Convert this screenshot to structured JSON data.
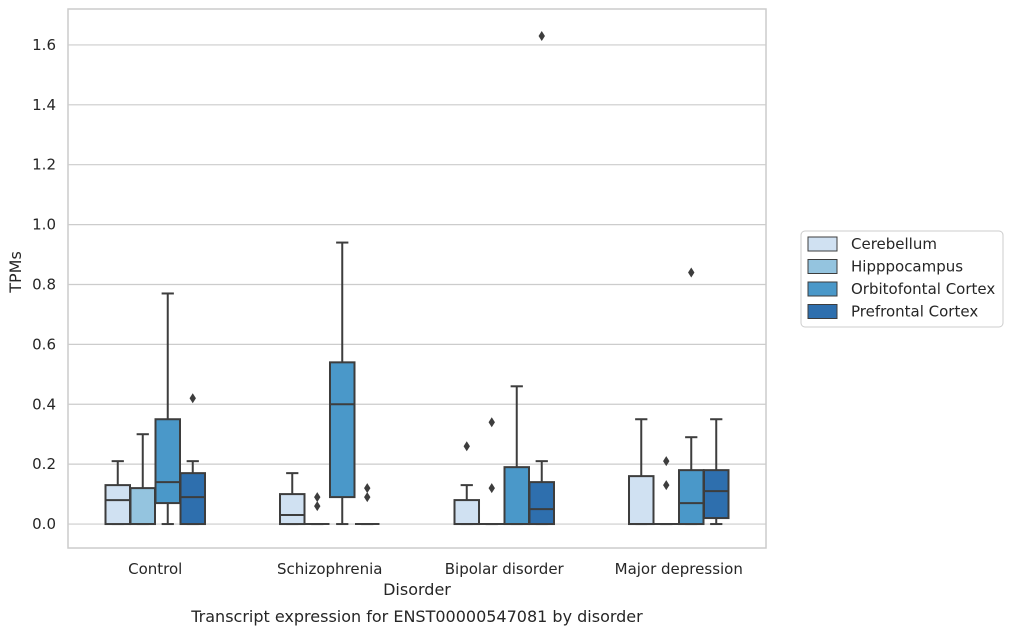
{
  "chart_data": {
    "type": "box",
    "title": "",
    "caption": "Transcript expression for ENST00000547081 by disorder",
    "xlabel": "Disorder",
    "ylabel": "TPMs",
    "ylim": [
      -0.08,
      1.72
    ],
    "yticks": [
      0.0,
      0.2,
      0.4,
      0.6,
      0.8,
      1.0,
      1.2,
      1.4,
      1.6
    ],
    "ytick_labels": [
      "0.0",
      "0.2",
      "0.4",
      "0.6",
      "0.8",
      "1.0",
      "1.2",
      "1.4",
      "1.6"
    ],
    "grid": "horizontal",
    "legend_position": "right",
    "categories": [
      "Control",
      "Schizophrenia",
      "Bipolar disorder",
      "Major depression"
    ],
    "series": [
      {
        "name": "Cerebellum",
        "color": "#d0e1f2",
        "boxes": [
          {
            "whislo": 0.0,
            "q1": 0.0,
            "med": 0.08,
            "q3": 0.13,
            "whishi": 0.21,
            "fliers": []
          },
          {
            "whislo": 0.0,
            "q1": 0.0,
            "med": 0.03,
            "q3": 0.1,
            "whishi": 0.17,
            "fliers": []
          },
          {
            "whislo": 0.0,
            "q1": 0.0,
            "med": 0.0,
            "q3": 0.08,
            "whishi": 0.13,
            "fliers": [
              0.26
            ]
          },
          {
            "whislo": 0.0,
            "q1": 0.0,
            "med": 0.0,
            "q3": 0.16,
            "whishi": 0.35,
            "fliers": []
          }
        ]
      },
      {
        "name": "Hipppocampus",
        "color": "#94c4df",
        "boxes": [
          {
            "whislo": 0.0,
            "q1": 0.0,
            "med": 0.0,
            "q3": 0.12,
            "whishi": 0.3,
            "fliers": []
          },
          {
            "whislo": 0.0,
            "q1": 0.0,
            "med": 0.0,
            "q3": 0.0,
            "whishi": 0.0,
            "fliers": [
              0.06,
              0.09
            ]
          },
          {
            "whislo": 0.0,
            "q1": 0.0,
            "med": 0.0,
            "q3": 0.0,
            "whishi": 0.0,
            "fliers": [
              0.12,
              0.34
            ]
          },
          {
            "whislo": 0.0,
            "q1": 0.0,
            "med": 0.0,
            "q3": 0.0,
            "whishi": 0.0,
            "fliers": [
              0.13,
              0.21
            ]
          }
        ]
      },
      {
        "name": "Orbitofontal Cortex",
        "color": "#4a98c9",
        "boxes": [
          {
            "whislo": 0.0,
            "q1": 0.07,
            "med": 0.14,
            "q3": 0.35,
            "whishi": 0.77,
            "fliers": []
          },
          {
            "whislo": 0.0,
            "q1": 0.09,
            "med": 0.4,
            "q3": 0.54,
            "whishi": 0.94,
            "fliers": []
          },
          {
            "whislo": 0.0,
            "q1": 0.0,
            "med": 0.0,
            "q3": 0.19,
            "whishi": 0.46,
            "fliers": []
          },
          {
            "whislo": 0.0,
            "q1": 0.0,
            "med": 0.07,
            "q3": 0.18,
            "whishi": 0.29,
            "fliers": [
              0.84
            ]
          }
        ]
      },
      {
        "name": "Prefrontal Cortex",
        "color": "#2e6fae",
        "boxes": [
          {
            "whislo": 0.0,
            "q1": 0.0,
            "med": 0.09,
            "q3": 0.17,
            "whishi": 0.21,
            "fliers": [
              0.42
            ]
          },
          {
            "whislo": 0.0,
            "q1": 0.0,
            "med": 0.0,
            "q3": 0.0,
            "whishi": 0.0,
            "fliers": [
              0.09,
              0.12
            ]
          },
          {
            "whislo": 0.0,
            "q1": 0.0,
            "med": 0.05,
            "q3": 0.14,
            "whishi": 0.21,
            "fliers": [
              1.63
            ]
          },
          {
            "whislo": 0.0,
            "q1": 0.02,
            "med": 0.11,
            "q3": 0.18,
            "whishi": 0.35,
            "fliers": []
          }
        ]
      }
    ]
  }
}
